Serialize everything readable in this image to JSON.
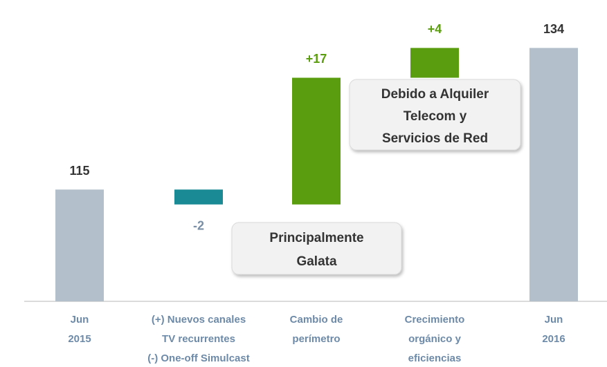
{
  "chart_data": {
    "type": "waterfall",
    "categories": [
      [
        "Jun",
        "2015"
      ],
      [
        "(+) Nuevos canales",
        "TV recurrentes",
        "(-) One-off Simulcast"
      ],
      [
        "Cambio de",
        "perímetro"
      ],
      [
        "Crecimiento",
        "orgánico  y",
        "eficiencias"
      ],
      [
        "Jun",
        "2016"
      ]
    ],
    "values": [
      115,
      -2,
      17,
      4,
      134
    ],
    "value_labels": [
      "115",
      "-2",
      "+17",
      "+4",
      "134"
    ],
    "measures": [
      "absolute",
      "relative",
      "relative",
      "relative",
      "absolute"
    ],
    "colors": {
      "absolute": "#b4bfcc",
      "increase": "#5a9e0f",
      "decrease": "#1a8a94"
    },
    "ylim": [
      100,
      137
    ],
    "annotations": [
      [
        "Principalmente",
        "Galata"
      ],
      [
        "Debido a Alquiler",
        "Telecom y",
        "Servicios de Red"
      ]
    ]
  }
}
